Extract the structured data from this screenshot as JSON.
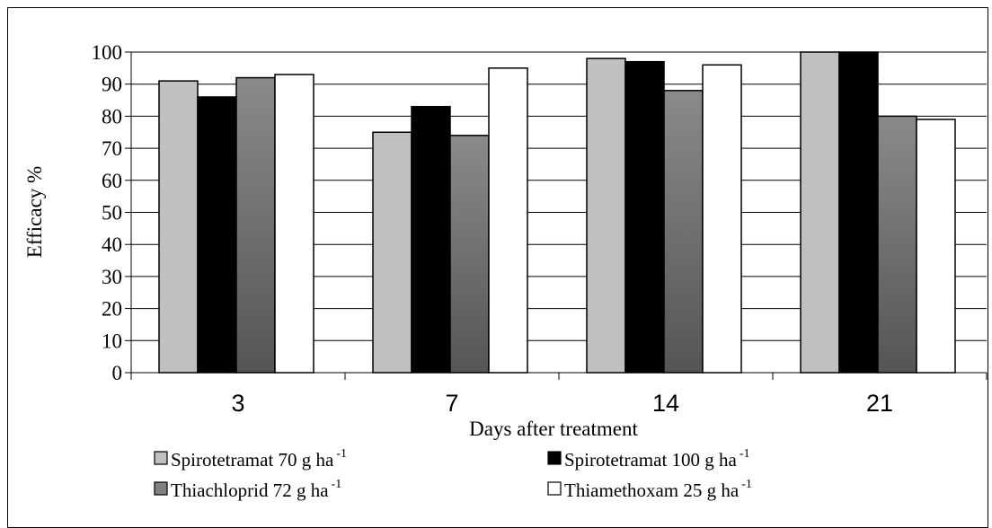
{
  "chart_data": {
    "type": "bar",
    "title": "",
    "xlabel": "Days after treatment",
    "ylabel": "Efficacy %",
    "categories": [
      "3",
      "7",
      "14",
      "21"
    ],
    "ylim": [
      0,
      100
    ],
    "yticks": [
      "0",
      "10",
      "20",
      "30",
      "40",
      "50",
      "60",
      "70",
      "80",
      "90",
      "100"
    ],
    "grid": true,
    "legend_position": "bottom",
    "series": [
      {
        "name": "Spirotetramat 70 g ha",
        "superscript": "-1",
        "values": [
          91,
          75,
          98,
          100
        ],
        "color": "#c0c0c0"
      },
      {
        "name": "Spirotetramat 100 g ha",
        "superscript": "-1",
        "values": [
          86,
          83,
          97,
          100
        ],
        "color": "#000000"
      },
      {
        "name": "Thiachloprid 72 g ha",
        "superscript": "-1",
        "values": [
          92,
          74,
          88,
          80
        ],
        "color": "#808080"
      },
      {
        "name": "Thiamethoxam 25 g ha",
        "superscript": "-1",
        "values": [
          93,
          95,
          96,
          79
        ],
        "color": "#ffffff"
      }
    ]
  }
}
